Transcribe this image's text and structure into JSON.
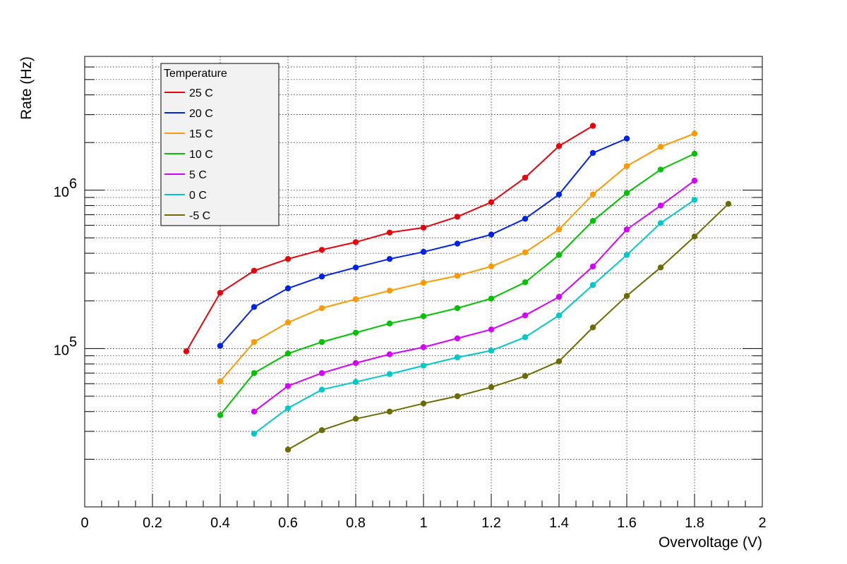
{
  "chart_data": {
    "type": "line",
    "title": "",
    "xlabel": "Overvoltage (V)",
    "ylabel": "Rate (Hz)",
    "xlim": [
      0,
      2
    ],
    "ylim": [
      10000,
      7000000
    ],
    "y_scale": "log",
    "grid": true,
    "legend": {
      "title": "Temperature",
      "placement": "top-left"
    },
    "x_ticks": [
      "0",
      "0.2",
      "0.4",
      "0.6",
      "0.8",
      "1",
      "1.2",
      "1.4",
      "1.6",
      "1.8",
      "2"
    ],
    "y_ticks": [
      {
        "value": 100000,
        "base": "10",
        "exp": "5"
      },
      {
        "value": 1000000,
        "base": "10",
        "exp": "6"
      }
    ],
    "series": [
      {
        "name": "25 C",
        "color": "#e8000b",
        "x": [
          0.3,
          0.4,
          0.5,
          0.6,
          0.7,
          0.8,
          0.9,
          1.0,
          1.1,
          1.2,
          1.3,
          1.4,
          1.5
        ],
        "y": [
          96000,
          225000,
          310000,
          368000,
          420000,
          470000,
          540000,
          580000,
          680000,
          840000,
          1200000,
          1900000,
          2550000
        ]
      },
      {
        "name": "20 C",
        "color": "#0021e8",
        "x": [
          0.4,
          0.5,
          0.6,
          0.7,
          0.8,
          0.9,
          1.0,
          1.1,
          1.2,
          1.3,
          1.4,
          1.5,
          1.6
        ],
        "y": [
          104000,
          183000,
          240000,
          285000,
          325000,
          368000,
          408000,
          460000,
          525000,
          660000,
          940000,
          1720000,
          2120000
        ]
      },
      {
        "name": "15 C",
        "color": "#ff9900",
        "x": [
          0.4,
          0.5,
          0.6,
          0.7,
          0.8,
          0.9,
          1.0,
          1.1,
          1.2,
          1.3,
          1.4,
          1.5,
          1.6,
          1.7,
          1.8
        ],
        "y": [
          62000,
          110000,
          146000,
          180000,
          205000,
          232000,
          260000,
          288000,
          330000,
          405000,
          565000,
          940000,
          1420000,
          1880000,
          2280000
        ]
      },
      {
        "name": "10 C",
        "color": "#00c200",
        "x": [
          0.4,
          0.5,
          0.6,
          0.7,
          0.8,
          0.9,
          1.0,
          1.1,
          1.2,
          1.3,
          1.4,
          1.5,
          1.6,
          1.7,
          1.8
        ],
        "y": [
          38000,
          70000,
          93000,
          110000,
          126000,
          144000,
          160000,
          180000,
          207000,
          262000,
          390000,
          640000,
          960000,
          1350000,
          1700000
        ]
      },
      {
        "name": "5 C",
        "color": "#d400ff",
        "x": [
          0.5,
          0.6,
          0.7,
          0.8,
          0.9,
          1.0,
          1.1,
          1.2,
          1.3,
          1.4,
          1.5,
          1.6,
          1.7,
          1.8
        ],
        "y": [
          40000,
          58000,
          70000,
          81000,
          92000,
          102000,
          116000,
          132000,
          162000,
          212000,
          330000,
          565000,
          800000,
          1150000
        ]
      },
      {
        "name": "0 C",
        "color": "#00c8c8",
        "x": [
          0.5,
          0.6,
          0.7,
          0.8,
          0.9,
          1.0,
          1.1,
          1.2,
          1.3,
          1.4,
          1.5,
          1.6,
          1.7,
          1.8
        ],
        "y": [
          29000,
          42000,
          55000,
          61500,
          69000,
          78000,
          88000,
          97000,
          118000,
          162000,
          252000,
          390000,
          620000,
          870000
        ]
      },
      {
        "name": "-5 C",
        "color": "#6b6b00",
        "x": [
          0.6,
          0.7,
          0.8,
          0.9,
          1.0,
          1.1,
          1.2,
          1.3,
          1.4,
          1.5,
          1.6,
          1.7,
          1.8,
          1.9
        ],
        "y": [
          23000,
          30500,
          36000,
          40000,
          45000,
          50000,
          57000,
          67000,
          83000,
          136000,
          215000,
          325000,
          510000,
          820000
        ]
      }
    ]
  }
}
